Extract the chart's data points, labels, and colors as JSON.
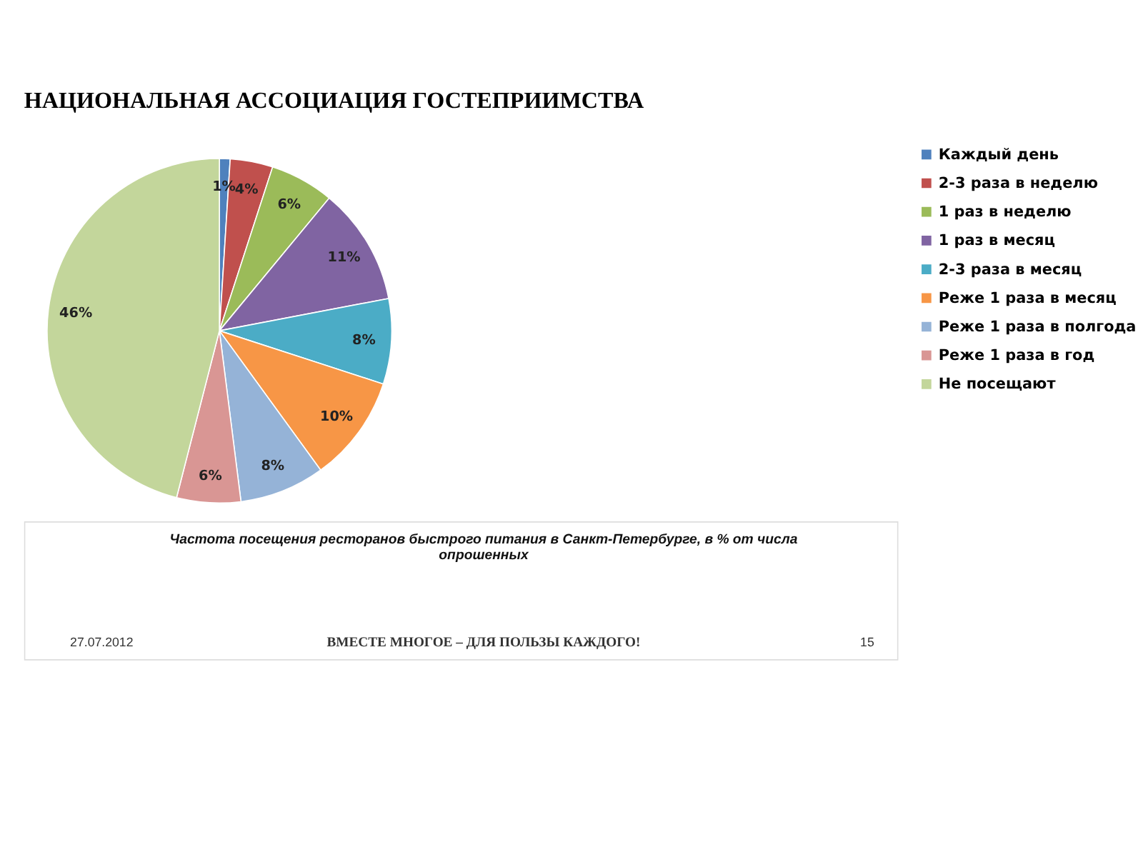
{
  "chart_data": {
    "type": "pie",
    "title": "НАЦИОНАЛЬНАЯ АССОЦИАЦИЯ ГОСТЕПРИИМСТВА",
    "categories": [
      "Каждый день",
      "2-3 раза в неделю",
      "1 раз в неделю",
      "1 раз в месяц",
      "2-3 раза в месяц",
      "Реже 1 раза в месяц",
      "Реже 1 раза в полгода",
      "Реже 1 раза в год",
      "Не посещают"
    ],
    "values": [
      1,
      4,
      6,
      11,
      8,
      10,
      8,
      6,
      46
    ],
    "value_labels": [
      "1%",
      "4%",
      "6%",
      "11%",
      "8%",
      "10%",
      "8%",
      "6%",
      "46%"
    ],
    "colors": [
      "#4f81bd",
      "#c0504d",
      "#9bbb59",
      "#8064a2",
      "#4bacc6",
      "#f79646",
      "#95b3d7",
      "#d99694",
      "#c3d69b"
    ],
    "legend": "right",
    "annotations": [
      "Частота посещения ресторанов быстрого питания в Санкт-Петербурге, в % от числа опрошенных",
      "ВМЕСТЕ МНОГОЕ – ДЛЯ ПОЛЬЗЫ КАЖДОГО!",
      "27.07.2012",
      "15"
    ]
  }
}
